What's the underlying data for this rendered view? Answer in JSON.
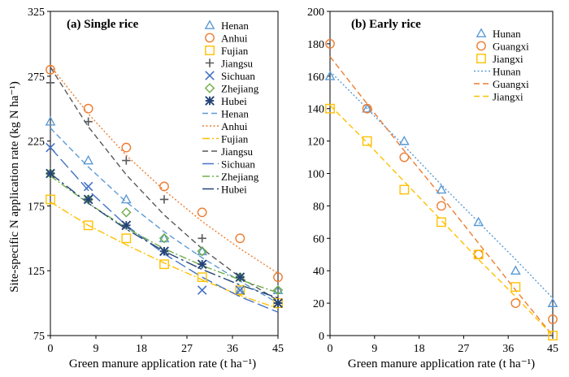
{
  "figure": {
    "ylabel": "Site-specific N application rate (kg N ha⁻¹)",
    "xlabel_left": "Green manure application rate (t ha⁻¹)",
    "xlabel_right": "Green manure application rate (t ha⁻¹)"
  },
  "chart_data": [
    {
      "type": "scatter",
      "title": "(a) Single rice",
      "xlabel": "Green manure application rate (t ha⁻¹)",
      "ylabel": "Site-specific N application rate (kg N ha⁻¹)",
      "xlim": [
        0,
        45
      ],
      "ylim": [
        75,
        325
      ],
      "xticks": [
        0,
        9,
        18,
        27,
        36,
        45
      ],
      "yticks": [
        75,
        125,
        175,
        225,
        275,
        325
      ],
      "x": [
        0,
        7.5,
        15,
        22.5,
        30,
        37.5,
        45
      ],
      "legend_position": "top-right",
      "series": [
        {
          "name": "Henan",
          "marker": "triangle",
          "color": "#5B9BD5",
          "values": [
            240,
            210,
            180,
            150,
            140,
            110,
            110
          ],
          "fit_label": "Henan",
          "fit_dash": "dash",
          "fit": [
            235,
            205,
            178,
            155,
            135,
            117,
            100
          ]
        },
        {
          "name": "Anhui",
          "marker": "circle",
          "color": "#ED7D31",
          "values": [
            280,
            250,
            220,
            190,
            170,
            150,
            120
          ],
          "fit_label": "Anhui",
          "fit_dash": "dot",
          "fit": [
            283,
            246,
            214,
            187,
            163,
            142,
            123
          ]
        },
        {
          "name": "Fujian",
          "marker": "square",
          "color": "#FFC000",
          "values": [
            180,
            160,
            150,
            130,
            120,
            110,
            100
          ],
          "fit_label": "Fujian",
          "fit_dash": "dashdot",
          "fit": [
            178,
            160,
            145,
            131,
            118,
            106,
            96
          ]
        },
        {
          "name": "Jiangsu",
          "marker": "plus",
          "color": "#595959",
          "values": [
            270,
            240,
            210,
            180,
            150,
            120,
            100
          ],
          "fit_label": "Jiangsu",
          "fit_dash": "dash",
          "fit": [
            282,
            236,
            199,
            168,
            142,
            120,
            102
          ]
        },
        {
          "name": "Sichuan",
          "marker": "x",
          "color": "#4472C4",
          "values": [
            220,
            190,
            160,
            140,
            110,
            110,
            100
          ],
          "fit_label": "Sichuan",
          "fit_dash": "longdash",
          "fit": [
            220,
            187,
            160,
            138,
            120,
            105,
            93
          ]
        },
        {
          "name": "Zhejiang",
          "marker": "diamond",
          "color": "#70AD47",
          "values": [
            200,
            180,
            170,
            150,
            140,
            120,
            110
          ],
          "fit_label": "Zhejiang",
          "fit_dash": "dashdot",
          "fit": [
            198,
            177,
            158,
            142,
            129,
            118,
            108
          ]
        },
        {
          "name": "Hubei",
          "marker": "star",
          "color": "#264478",
          "values": [
            200,
            180,
            160,
            140,
            130,
            120,
            100
          ],
          "fit_label": "Hubei",
          "fit_dash": "longdashdot",
          "fit": [
            200,
            177,
            157,
            140,
            126,
            114,
            104
          ]
        }
      ]
    },
    {
      "type": "scatter",
      "title": "(b) Early rice",
      "xlabel": "Green manure application rate (t ha⁻¹)",
      "ylabel": "",
      "xlim": [
        0,
        45
      ],
      "ylim": [
        0,
        200
      ],
      "xticks": [
        0,
        9,
        18,
        27,
        36,
        45
      ],
      "yticks": [
        0,
        20,
        40,
        60,
        80,
        100,
        120,
        140,
        160,
        180,
        200
      ],
      "x": [
        0,
        7.5,
        15,
        22.5,
        30,
        37.5,
        45
      ],
      "legend_position": "top-right",
      "series": [
        {
          "name": "Hunan",
          "marker": "triangle",
          "color": "#5B9BD5",
          "values": [
            160,
            140,
            120,
            90,
            70,
            40,
            20
          ],
          "fit_label": "Hunan",
          "fit_dash": "dot",
          "fit": [
            163,
            140,
            117,
            93,
            70,
            47,
            23
          ]
        },
        {
          "name": "Guangxi",
          "marker": "circle",
          "color": "#ED7D31",
          "values": [
            180,
            140,
            110,
            80,
            50,
            20,
            10
          ],
          "fit_label": "Guangxi",
          "fit_dash": "dash",
          "fit": [
            172,
            143,
            114,
            86,
            57,
            28,
            0
          ]
        },
        {
          "name": "Jiangxi",
          "marker": "square",
          "color": "#FFC000",
          "values": [
            140,
            120,
            90,
            70,
            50,
            30,
            0
          ],
          "fit_label": "Jiangxi",
          "fit_dash": "dash",
          "fit": [
            142,
            119,
            95,
            71,
            47,
            24,
            0
          ]
        }
      ]
    }
  ]
}
